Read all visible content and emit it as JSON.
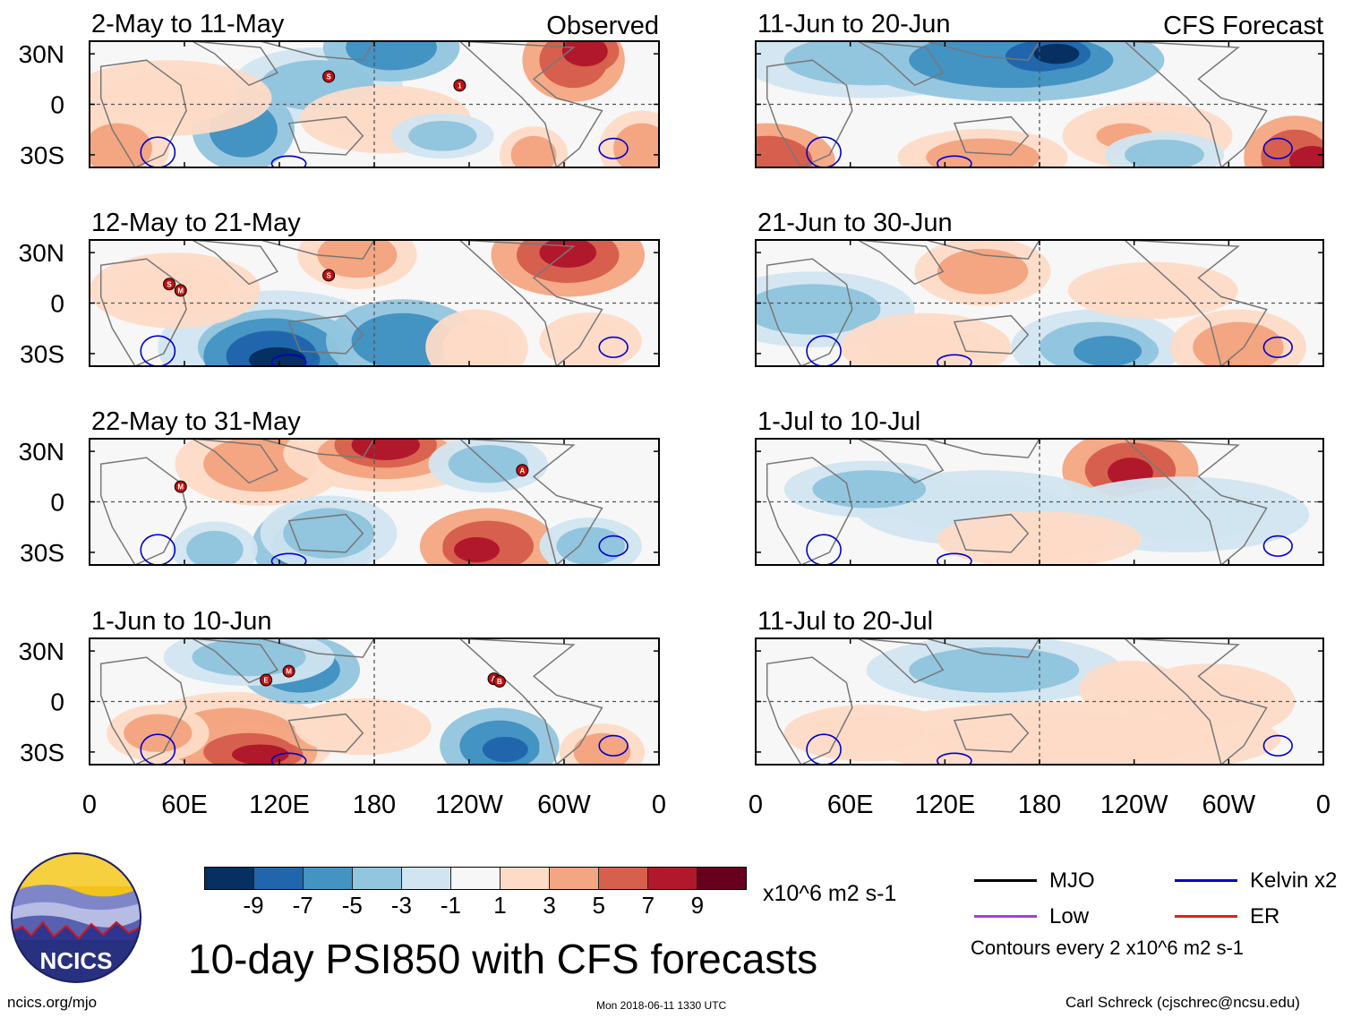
{
  "panels": [
    {
      "date_range": "2-May to 11-May",
      "label": "Observed"
    },
    {
      "date_range": "11-Jun to 20-Jun",
      "label": "CFS Forecast"
    },
    {
      "date_range": "12-May to 21-May",
      "label": ""
    },
    {
      "date_range": "21-Jun to 30-Jun",
      "label": ""
    },
    {
      "date_range": "22-May to 31-May",
      "label": ""
    },
    {
      "date_range": "1-Jul to 10-Jul",
      "label": ""
    },
    {
      "date_range": "1-Jun to 10-Jun",
      "label": ""
    },
    {
      "date_range": "11-Jul to 20-Jul",
      "label": ""
    }
  ],
  "lat_labels": [
    "30N",
    "0",
    "30S"
  ],
  "lon_labels": [
    "0",
    "60E",
    "120E",
    "180",
    "120W",
    "60W",
    "0"
  ],
  "colorbar": {
    "colors": [
      "#053061",
      "#2166ac",
      "#4393c3",
      "#92c5de",
      "#d1e5f0",
      "#f7f7f7",
      "#fddbc7",
      "#f4a582",
      "#d6604d",
      "#b2182b",
      "#67001f"
    ],
    "tick_labels": [
      "-9",
      "-7",
      "-5",
      "-3",
      "-1",
      "1",
      "3",
      "5",
      "7",
      "9"
    ],
    "units": "x10^6 m2 s-1"
  },
  "title": "10-day PSI850 with CFS forecasts",
  "legend": {
    "items": [
      {
        "label": "MJO",
        "color": "#000000"
      },
      {
        "label": "Kelvin x2",
        "color": "#0000cc"
      },
      {
        "label": "Low",
        "color": "#a040e0"
      },
      {
        "label": "ER",
        "color": "#e02020"
      }
    ],
    "contour_note": "Contours every 2 x10^6 m2 s-1"
  },
  "logo_text": "NCICS",
  "footer": {
    "url": "ncics.org/mjo",
    "timestamp": "Mon 2018-06-11 1330 UTC",
    "author": "Carl Schreck (cjschrec@ncsu.edu)"
  },
  "storm_markers": {
    "panel_0": [
      "S",
      "1"
    ],
    "panel_2": [
      "S",
      "M",
      "S"
    ],
    "panel_4": [
      "M",
      "A"
    ],
    "panel_6": [
      "E",
      "M",
      "A",
      "B"
    ]
  }
}
